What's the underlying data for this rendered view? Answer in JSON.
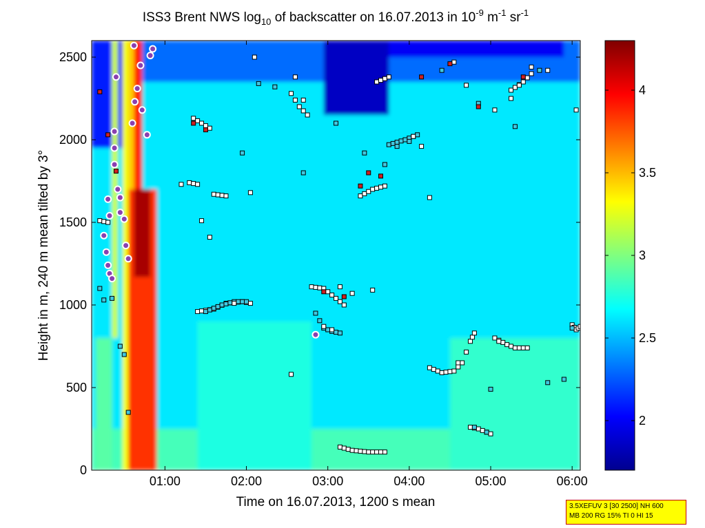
{
  "chart_data": {
    "type": "heatmap",
    "title_parts": {
      "a": "ISS3 Brent NWS log",
      "a_sub": "10",
      "b": " of backscatter on 16.07.2013 in 10",
      "b_sup": "-9",
      "c": " m",
      "c_sup": "-1",
      "d": " sr",
      "d_sup": "-1"
    },
    "xlabel": "Time on 16.07.2013, 1200 s mean",
    "ylabel": "Height in m, 240 m mean tilted by 3°",
    "x_ticks": [
      "01:00",
      "02:00",
      "03:00",
      "04:00",
      "05:00",
      "06:00"
    ],
    "x_tick_hours": [
      1,
      2,
      3,
      4,
      5,
      6
    ],
    "xlim_hours": [
      0.1,
      6.1
    ],
    "y_ticks": [
      0,
      500,
      1000,
      1500,
      2000,
      2500
    ],
    "ylim": [
      0,
      2600
    ],
    "colorbar": {
      "ticks": [
        2,
        2.5,
        3,
        3.5,
        4
      ],
      "labels": [
        "2",
        "2.5",
        "3",
        "3.5",
        "4"
      ],
      "range": [
        1.7,
        4.3
      ],
      "colormap": "jet"
    },
    "layers": [
      {
        "t0": 0.1,
        "t1": 6.1,
        "h0": 0,
        "h1": 2600,
        "value": 2.62
      },
      {
        "t0": 0.1,
        "t1": 6.1,
        "h0": 0,
        "h1": 250,
        "value": 2.85
      },
      {
        "t0": 1.4,
        "t1": 2.8,
        "h0": 0,
        "h1": 900,
        "value": 2.75
      },
      {
        "t0": 4.5,
        "t1": 6.1,
        "h0": 0,
        "h1": 800,
        "value": 2.8
      },
      {
        "t0": 0.1,
        "t1": 6.1,
        "h0": 2350,
        "h1": 2600,
        "value": 2.3
      },
      {
        "t0": 2.95,
        "t1": 3.75,
        "h0": 2150,
        "h1": 2600,
        "value": 1.85
      },
      {
        "t0": 3.75,
        "t1": 5.9,
        "h0": 2500,
        "h1": 2600,
        "value": 2.0
      },
      {
        "t0": 0.1,
        "t1": 0.55,
        "h0": 1950,
        "h1": 2600,
        "value": 2.1
      },
      {
        "t0": 0.35,
        "t1": 0.42,
        "h0": 800,
        "h1": 2600,
        "value": 3.2
      },
      {
        "t0": 0.48,
        "t1": 0.55,
        "h0": 0,
        "h1": 2600,
        "value": 3.3
      },
      {
        "t0": 0.55,
        "t1": 0.72,
        "h0": 1700,
        "h1": 2600,
        "value": 3.45
      },
      {
        "t0": 0.55,
        "t1": 0.9,
        "h0": 0,
        "h1": 1700,
        "value": 3.85
      },
      {
        "t0": 0.62,
        "t1": 0.82,
        "h0": 1170,
        "h1": 1700,
        "value": 4.2
      },
      {
        "t0": 0.62,
        "t1": 0.72,
        "h0": 1700,
        "h1": 2600,
        "value": 3.9
      },
      {
        "t0": 0.15,
        "t1": 0.35,
        "h0": 0,
        "h1": 800,
        "value": 2.9
      }
    ],
    "marker_series": [
      {
        "marker": "square",
        "fill": "#ffffff",
        "points": [
          [
            2.1,
            2500
          ],
          [
            2.6,
            2380
          ],
          [
            2.7,
            2240
          ],
          [
            3.15,
            1110
          ],
          [
            3.3,
            1070
          ],
          [
            3.55,
            1090
          ],
          [
            4.05,
            2020
          ],
          [
            4.15,
            1960
          ],
          [
            4.55,
            2470
          ],
          [
            4.7,
            2330
          ],
          [
            5.05,
            2180
          ],
          [
            5.25,
            2250
          ],
          [
            5.35,
            2330
          ],
          [
            5.5,
            2440
          ],
          [
            6.05,
            2180
          ],
          [
            5.7,
            2420
          ],
          [
            2.95,
            870
          ],
          [
            3.05,
            850
          ],
          [
            2.05,
            1680
          ],
          [
            1.55,
            1410
          ],
          [
            1.45,
            1510
          ],
          [
            1.2,
            1730
          ],
          [
            1.85,
            1010
          ],
          [
            2.55,
            580
          ],
          [
            4.25,
            1650
          ],
          [
            4.6,
            650
          ],
          [
            5.1,
            780
          ]
        ]
      },
      {
        "marker": "square",
        "fill": "#40c8e0",
        "points": [
          [
            0.2,
            1100
          ],
          [
            0.25,
            1030
          ],
          [
            0.35,
            1040
          ],
          [
            0.45,
            750
          ],
          [
            0.5,
            700
          ],
          [
            0.55,
            350
          ],
          [
            2.15,
            2340
          ],
          [
            2.35,
            2320
          ],
          [
            3.1,
            2100
          ],
          [
            3.45,
            1920
          ],
          [
            3.7,
            1850
          ],
          [
            3.85,
            1960
          ],
          [
            4.4,
            2420
          ],
          [
            4.85,
            2220
          ],
          [
            5.3,
            2080
          ],
          [
            5.6,
            2420
          ],
          [
            5.7,
            530
          ],
          [
            5.9,
            550
          ],
          [
            6.0,
            860
          ],
          [
            2.7,
            1800
          ],
          [
            1.95,
            1920
          ],
          [
            4.0,
            1990
          ],
          [
            5.0,
            490
          ],
          [
            4.8,
            260
          ],
          [
            4.95,
            230
          ]
        ]
      },
      {
        "marker": "square",
        "fill": "#d02020",
        "points": [
          [
            0.2,
            2290
          ],
          [
            0.3,
            2030
          ],
          [
            0.4,
            1810
          ],
          [
            1.35,
            2100
          ],
          [
            1.5,
            2060
          ],
          [
            3.4,
            1720
          ],
          [
            3.5,
            1800
          ],
          [
            3.65,
            1780
          ],
          [
            4.15,
            2380
          ],
          [
            4.5,
            2460
          ],
          [
            4.85,
            2200
          ],
          [
            5.4,
            2380
          ],
          [
            2.95,
            1080
          ],
          [
            3.2,
            1050
          ]
        ]
      },
      {
        "marker": "circle",
        "fill": "#8a40b0",
        "points": [
          [
            0.25,
            1420
          ],
          [
            0.28,
            1320
          ],
          [
            0.3,
            1240
          ],
          [
            0.32,
            1190
          ],
          [
            0.35,
            1160
          ],
          [
            0.38,
            1850
          ],
          [
            0.38,
            1950
          ],
          [
            0.38,
            2050
          ],
          [
            0.4,
            2380
          ],
          [
            0.42,
            1700
          ],
          [
            0.45,
            1650
          ],
          [
            0.5,
            1520
          ],
          [
            0.52,
            1360
          ],
          [
            0.55,
            1280
          ],
          [
            0.6,
            2100
          ],
          [
            0.63,
            2230
          ],
          [
            0.66,
            2310
          ],
          [
            0.7,
            2450
          ],
          [
            0.72,
            2180
          ],
          [
            0.78,
            2030
          ],
          [
            0.82,
            2510
          ],
          [
            0.85,
            2550
          ],
          [
            0.62,
            2570
          ],
          [
            2.85,
            820
          ],
          [
            0.3,
            1640
          ],
          [
            0.32,
            1540
          ],
          [
            0.45,
            1560
          ]
        ]
      }
    ],
    "marker_tracks": [
      {
        "fill": "#ffffff",
        "pts": [
          [
            1.4,
            960
          ],
          [
            1.6,
            975
          ],
          [
            1.75,
            1010
          ],
          [
            1.95,
            1020
          ],
          [
            2.05,
            1010
          ]
        ]
      },
      {
        "fill": "#40c8e0",
        "pts": [
          [
            1.5,
            960
          ],
          [
            1.7,
            1000
          ],
          [
            1.85,
            1020
          ],
          [
            2.0,
            1020
          ]
        ]
      },
      {
        "fill": "#ffffff",
        "pts": [
          [
            2.8,
            1110
          ],
          [
            2.95,
            1100
          ],
          [
            3.1,
            1040
          ],
          [
            3.2,
            1000
          ]
        ]
      },
      {
        "fill": "#40c8e0",
        "pts": [
          [
            2.85,
            950
          ],
          [
            2.95,
            860
          ],
          [
            3.05,
            840
          ],
          [
            3.15,
            830
          ]
        ]
      },
      {
        "fill": "#ffffff",
        "pts": [
          [
            3.15,
            140
          ],
          [
            3.3,
            120
          ],
          [
            3.5,
            110
          ],
          [
            3.7,
            110
          ]
        ]
      },
      {
        "fill": "#ffffff",
        "pts": [
          [
            4.25,
            620
          ],
          [
            4.4,
            590
          ],
          [
            4.55,
            600
          ],
          [
            4.65,
            650
          ],
          [
            4.75,
            780
          ],
          [
            4.8,
            830
          ]
        ]
      },
      {
        "fill": "#ffffff",
        "pts": [
          [
            4.75,
            260
          ],
          [
            4.85,
            250
          ],
          [
            5.0,
            220
          ]
        ]
      },
      {
        "fill": "#ffffff",
        "pts": [
          [
            5.05,
            800
          ],
          [
            5.2,
            760
          ],
          [
            5.3,
            740
          ],
          [
            5.45,
            740
          ]
        ]
      },
      {
        "fill": "#ffffff",
        "pts": [
          [
            5.25,
            2300
          ],
          [
            5.4,
            2350
          ],
          [
            5.5,
            2400
          ]
        ]
      },
      {
        "fill": "#ffffff",
        "pts": [
          [
            3.4,
            1660
          ],
          [
            3.55,
            1700
          ],
          [
            3.7,
            1720
          ]
        ]
      },
      {
        "fill": "#ffffff",
        "pts": [
          [
            3.6,
            2350
          ],
          [
            3.75,
            2380
          ]
        ]
      },
      {
        "fill": "#ffffff",
        "pts": [
          [
            2.55,
            2280
          ],
          [
            2.65,
            2200
          ],
          [
            2.75,
            2150
          ]
        ]
      },
      {
        "fill": "#40c8e0",
        "pts": [
          [
            3.75,
            1970
          ],
          [
            3.95,
            2000
          ],
          [
            4.1,
            2030
          ]
        ]
      },
      {
        "fill": "#ffffff",
        "pts": [
          [
            0.2,
            1510
          ],
          [
            0.3,
            1500
          ]
        ]
      },
      {
        "fill": "#ffffff",
        "pts": [
          [
            1.35,
            2130
          ],
          [
            1.45,
            2100
          ],
          [
            1.55,
            2070
          ]
        ]
      },
      {
        "fill": "#ffffff",
        "pts": [
          [
            1.3,
            1740
          ],
          [
            1.4,
            1730
          ]
        ]
      },
      {
        "fill": "#ffffff",
        "pts": [
          [
            1.6,
            1670
          ],
          [
            1.75,
            1660
          ]
        ]
      },
      {
        "fill": "#ffffff",
        "pts": [
          [
            6.0,
            880
          ],
          [
            6.05,
            850
          ],
          [
            6.1,
            870
          ]
        ]
      }
    ]
  },
  "info_box": {
    "line1": "3.5XEFUV 3 [30 2500] NH 600",
    "line2": "MB 200 RG 15% TI 0 HI 15"
  }
}
